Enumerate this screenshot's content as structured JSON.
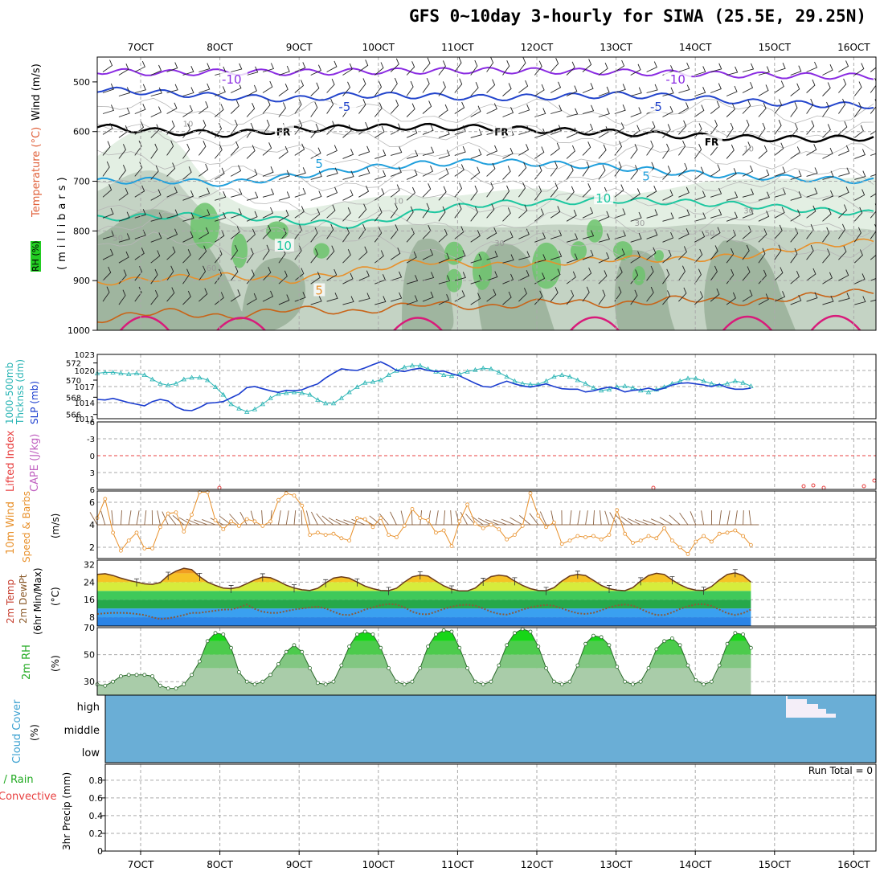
{
  "title": "GFS 0~10day 3-hourly for SIWA (25.5E, 29.25N)",
  "colors": {
    "grid": "#aaaaaa",
    "rh_light": "#e3efe3",
    "rh_mid": "#c4d3c4",
    "rh_dark": "#9fb59f",
    "rh_green": "#6cc36c",
    "slp": "#1a3ccf",
    "thk": "#2bb5b5",
    "wind": "#e8902a",
    "rh2m": "#22cc22",
    "cloud": "#6aaed6",
    "precip": "#cc3333"
  },
  "x_axis": {
    "ticks": [
      "7OCT",
      "8OCT",
      "9OCT",
      "10OCT",
      "11OCT",
      "12OCT",
      "13OCT",
      "14OCT",
      "15OCT",
      "16OCT"
    ]
  },
  "panels": {
    "upper": {
      "labels": {
        "wind": "Wind (m/s)",
        "temp": "Temperature (°C)",
        "rh": "RH (%)",
        "pressure": "(millibars)"
      },
      "yticks": [
        "500",
        "600",
        "700",
        "800",
        "900",
        "1000"
      ],
      "contour_labels": [
        {
          "text": "-10",
          "p": 495,
          "t": 0.16
        },
        {
          "text": "-10",
          "p": 495,
          "t": 0.73
        },
        {
          "text": "-5",
          "p": 550,
          "t": 0.31
        },
        {
          "text": "-5",
          "p": 550,
          "t": 0.71
        },
        {
          "text": "FR",
          "p": 600,
          "t": 0.23
        },
        {
          "text": "FR",
          "p": 600,
          "t": 0.51
        },
        {
          "text": "FR",
          "p": 620,
          "t": 0.78
        },
        {
          "text": "5",
          "p": 665,
          "t": 0.28
        },
        {
          "text": "5",
          "p": 690,
          "t": 0.7
        },
        {
          "text": "10",
          "p": 735,
          "t": 0.64
        },
        {
          "text": "10",
          "p": 830,
          "t": 0.23
        },
        {
          "text": "5",
          "p": 920,
          "t": 0.28
        }
      ],
      "rh_labels": [
        {
          "text": "10",
          "p": 590,
          "t": 0.11
        },
        {
          "text": "10",
          "p": 640,
          "t": 0.83
        },
        {
          "text": "10",
          "p": 745,
          "t": 0.38
        },
        {
          "text": "50",
          "p": 820,
          "t": 0.02
        },
        {
          "text": "30",
          "p": 830,
          "t": 0.51
        },
        {
          "text": "30",
          "p": 790,
          "t": 0.69
        },
        {
          "text": "30",
          "p": 765,
          "t": 0.83
        },
        {
          "text": "50",
          "p": 810,
          "t": 0.78
        },
        {
          "text": "60",
          "p": 880,
          "t": 0.14
        }
      ]
    },
    "slp_thickness": {
      "labels": {
        "thk": "1000-500mb Thcknss (dm)",
        "slp": "SLP (mb)"
      },
      "left_ticks": [
        "572",
        "570",
        "568",
        "566"
      ],
      "right_ticks": [
        "1023",
        "1020",
        "1017",
        "1014",
        "1011"
      ]
    },
    "instability": {
      "labels": {
        "li": "Lifted Index",
        "cape": "CAPE (J/kg)"
      },
      "ticks": [
        "-6",
        "-3",
        "0",
        "3",
        "6"
      ]
    },
    "wind10m": {
      "labels": {
        "main": "10m Wind",
        "sub": "Speed & Barbs",
        "unit": "(m/s)"
      },
      "ticks": [
        "6",
        "4",
        "2"
      ]
    },
    "temp2m": {
      "labels": {
        "main": "2m Temp",
        "sub": "2m DewPt",
        "sub2": "(6hr Min/Max)",
        "unit": "(°C)"
      },
      "ticks": [
        "32",
        "24",
        "16",
        "8"
      ]
    },
    "rh2m": {
      "labels": {
        "main": "2m RH",
        "unit": "(%)"
      },
      "ticks": [
        "70",
        "50",
        "30"
      ]
    },
    "cloud": {
      "labels": {
        "main": "Cloud Cover",
        "unit": "(%)"
      },
      "ticks": [
        "high",
        "middle",
        "low"
      ]
    },
    "precip": {
      "labels": {
        "main": "Total / Rain",
        "sub": "Convective",
        "axis": "3hr Precip (mm)"
      },
      "ticks": [
        "0.8",
        "0.6",
        "0.4",
        "0.2",
        "0"
      ],
      "run_total": "Run Total = 0"
    }
  },
  "chart_data": [
    {
      "type": "line",
      "title": "SLP (mb)",
      "x_start": "6OCT 15Z",
      "step_hours": 3,
      "ylim": [
        1011,
        1023
      ],
      "values": [
        1014.6,
        1014.5,
        1014.8,
        1014.4,
        1014.0,
        1013.7,
        1013.4,
        1014.2,
        1014.6,
        1014.3,
        1013.2,
        1012.6,
        1012.5,
        1013.1,
        1013.9,
        1014.0,
        1014.2,
        1014.9,
        1015.6,
        1016.8,
        1017.0,
        1016.6,
        1016.2,
        1015.9,
        1016.3,
        1016.2,
        1016.4,
        1017.0,
        1017.5,
        1018.6,
        1019.5,
        1020.3,
        1020.1,
        1020.0,
        1020.5,
        1021.1,
        1021.6,
        1020.9,
        1020.0,
        1019.8,
        1020.2,
        1020.4,
        1020.0,
        1019.8,
        1019.9,
        1019.4,
        1019.0,
        1018.3,
        1017.6,
        1017.0,
        1016.9,
        1017.5,
        1018.0,
        1017.5,
        1017.1,
        1016.9,
        1017.2,
        1017.5,
        1017.0,
        1016.6,
        1016.5,
        1016.5,
        1016.0,
        1016.2,
        1016.6,
        1016.9,
        1016.6,
        1016.0,
        1016.3,
        1016.4,
        1016.7,
        1016.3,
        1016.7,
        1017.3,
        1017.6,
        1017.7,
        1017.5,
        1017.3,
        1017.0,
        1017.4,
        1016.8,
        1016.5,
        1016.5,
        1016.7
      ]
    },
    {
      "type": "line",
      "title": "1000-500mb Thickness (dm)",
      "x_start": "6OCT 15Z",
      "step_hours": 3,
      "ylim": [
        565.5,
        573
      ],
      "values": [
        570.8,
        570.9,
        570.9,
        570.8,
        570.7,
        570.8,
        570.6,
        570.1,
        569.6,
        569.4,
        569.6,
        570.1,
        570.3,
        570.3,
        570.0,
        569.2,
        568.3,
        567.2,
        566.7,
        566.3,
        566.6,
        567.2,
        567.9,
        568.4,
        568.5,
        568.6,
        568.5,
        568.3,
        567.7,
        567.3,
        567.3,
        567.9,
        568.6,
        569.2,
        569.7,
        569.8,
        570.0,
        570.6,
        571.1,
        571.5,
        571.7,
        571.7,
        571.3,
        571.0,
        570.6,
        570.5,
        570.7,
        571.0,
        571.2,
        571.4,
        571.3,
        570.9,
        570.4,
        569.9,
        569.6,
        569.5,
        569.5,
        569.9,
        570.4,
        570.6,
        570.4,
        570.0,
        569.6,
        569.1,
        568.8,
        568.9,
        569.2,
        569.3,
        569.1,
        568.8,
        568.6,
        568.9,
        569.2,
        569.6,
        569.9,
        570.2,
        570.2,
        569.9,
        569.6,
        569.4,
        569.6,
        569.9,
        569.7,
        569.3
      ]
    },
    {
      "type": "line",
      "title": "10m Wind Speed (m/s)",
      "x_start": "6OCT 15Z",
      "step_hours": 3,
      "ylim": [
        1,
        7
      ],
      "values": [
        4.6,
        6.3,
        3.3,
        1.7,
        2.6,
        3.3,
        1.9,
        1.9,
        3.8,
        5.0,
        5.1,
        3.4,
        4.9,
        6.9,
        6.9,
        4.4,
        3.6,
        4.3,
        3.9,
        4.5,
        4.3,
        3.9,
        4.3,
        6.2,
        6.8,
        6.6,
        5.7,
        3.1,
        3.3,
        3.1,
        3.2,
        2.8,
        2.6,
        4.6,
        4.5,
        3.8,
        4.6,
        3.1,
        2.9,
        3.9,
        5.4,
        4.6,
        4.4,
        3.3,
        3.5,
        2.1,
        4.3,
        5.8,
        4.1,
        3.7,
        4.0,
        3.6,
        2.7,
        3.1,
        3.9,
        6.8,
        4.8,
        3.8,
        4.2,
        2.3,
        2.6,
        3.0,
        2.9,
        3.0,
        2.7,
        3.1,
        5.3,
        3.2,
        2.4,
        2.6,
        3.0,
        2.8,
        3.7,
        2.6,
        2.0,
        1.4,
        2.5,
        3.0,
        2.5,
        3.2,
        3.3,
        3.5,
        3.0,
        2.2
      ]
    },
    {
      "type": "area",
      "title": "2m Temp (°C)",
      "x_start": "6OCT 15Z",
      "step_hours": 3,
      "ylim": [
        4,
        34
      ],
      "values": [
        27.5,
        27.8,
        27.0,
        25.8,
        24.8,
        24.0,
        23.2,
        23.0,
        23.8,
        27.0,
        29.0,
        30.3,
        29.7,
        26.5,
        24.0,
        22.5,
        21.3,
        21.0,
        21.7,
        23.3,
        25.0,
        26.3,
        26.0,
        24.4,
        22.6,
        21.3,
        20.5,
        20.2,
        21.2,
        23.6,
        25.8,
        26.4,
        25.8,
        24.0,
        22.2,
        21.0,
        20.2,
        20.1,
        21.2,
        24.0,
        26.4,
        27.2,
        26.8,
        24.5,
        22.3,
        20.8,
        20.0,
        20.0,
        21.3,
        24.3,
        26.5,
        27.2,
        26.7,
        24.5,
        22.5,
        21.0,
        20.2,
        20.1,
        21.5,
        24.5,
        26.8,
        27.5,
        27.0,
        24.8,
        22.5,
        21.0,
        20.3,
        20.1,
        21.5,
        24.5,
        27.0,
        28.0,
        27.5,
        25.0,
        22.8,
        21.2,
        20.3,
        20.2,
        22.0,
        25.0,
        27.5,
        28.2,
        27.0,
        24.0
      ]
    },
    {
      "type": "line",
      "title": "2m DewPt (°C)",
      "x_start": "6OCT 15Z",
      "step_hours": 3,
      "ylim": [
        4,
        34
      ],
      "values": [
        9.5,
        9.8,
        10.0,
        10.0,
        9.9,
        9.5,
        9.0,
        8.0,
        7.2,
        7.5,
        8.2,
        9.0,
        10.0,
        10.0,
        10.5,
        11.0,
        11.5,
        11.5,
        12.5,
        13.8,
        11.8,
        10.5,
        10.0,
        10.0,
        10.8,
        11.5,
        12.0,
        12.5,
        12.8,
        12.0,
        10.5,
        9.2,
        9.0,
        10.0,
        11.5,
        12.5,
        13.5,
        14.0,
        13.8,
        12.5,
        10.5,
        9.5,
        9.3,
        10.5,
        11.8,
        12.8,
        13.5,
        13.7,
        13.3,
        12.0,
        10.5,
        9.5,
        9.2,
        10.2,
        11.5,
        12.5,
        13.2,
        13.6,
        13.2,
        12.0,
        10.8,
        9.8,
        9.5,
        10.0,
        11.2,
        12.5,
        13.4,
        13.8,
        13.3,
        11.8,
        10.2,
        9.0,
        9.0,
        10.2,
        11.8,
        13.0,
        13.8,
        14.0,
        13.2,
        11.5,
        9.8,
        9.0,
        9.8,
        11.5
      ]
    },
    {
      "type": "area",
      "title": "2m RH (%)",
      "x_start": "6OCT 15Z",
      "step_hours": 3,
      "ylim": [
        20,
        70
      ],
      "values": [
        28,
        27,
        30,
        34,
        35,
        35,
        35,
        34,
        27,
        25,
        25,
        28,
        35,
        45,
        60,
        66,
        65,
        55,
        37,
        30,
        28,
        30,
        35,
        43,
        52,
        57,
        52,
        40,
        29,
        28,
        30,
        42,
        56,
        65,
        67,
        65,
        55,
        40,
        30,
        28,
        30,
        40,
        56,
        65,
        68,
        67,
        55,
        40,
        30,
        28,
        30,
        42,
        57,
        66,
        69,
        67,
        56,
        40,
        30,
        28,
        30,
        42,
        58,
        64,
        63,
        57,
        41,
        30,
        28,
        30,
        40,
        54,
        60,
        62,
        57,
        42,
        31,
        28,
        30,
        42,
        58,
        66,
        65,
        55
      ]
    },
    {
      "type": "bar",
      "title": "Cloud Cover (%)",
      "levels": [
        "high",
        "middle",
        "low"
      ],
      "high_cloud_window": [
        "15OCT 03Z",
        "15OCT 15Z"
      ]
    },
    {
      "type": "bar",
      "title": "3hr Precip (mm)",
      "ylim": [
        0,
        1
      ],
      "values": [],
      "run_total": 0
    }
  ]
}
